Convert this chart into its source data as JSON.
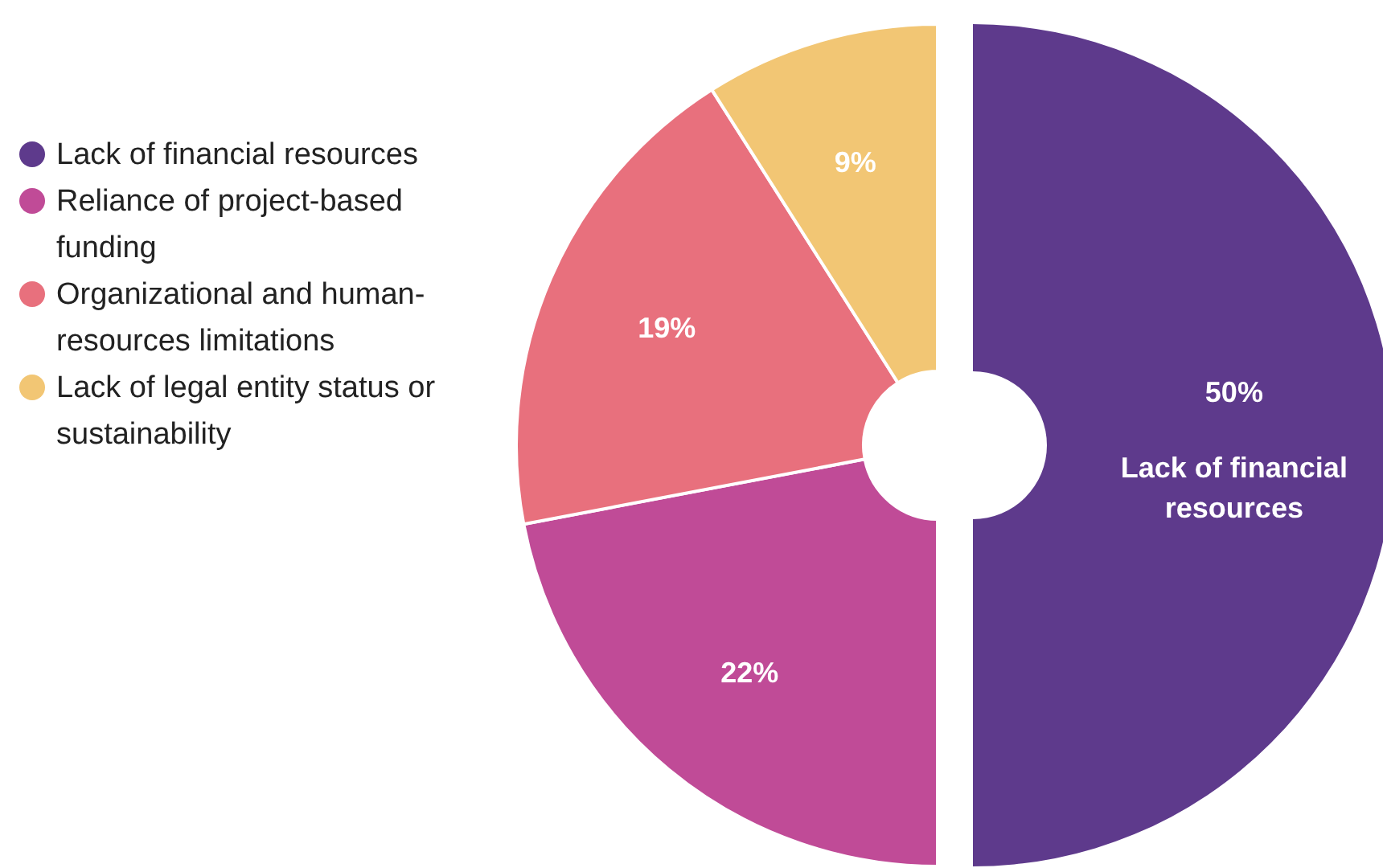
{
  "chart_data": {
    "type": "donut",
    "categories": [
      "Lack of financial resources",
      "Reliance of project-based funding",
      "Organizational and human-resources limitations",
      "Lack of legal entity status or sustainability"
    ],
    "values": [
      50,
      22,
      19,
      9
    ],
    "colors": [
      "#5e3a8c",
      "#c04b97",
      "#e8707d",
      "#f2c674"
    ],
    "value_labels": [
      "50%",
      "22%",
      "19%",
      "9%"
    ],
    "annotations": [
      {
        "text": "Lack of financial resources",
        "x": "Lack of financial resources"
      }
    ],
    "legend": "left"
  }
}
